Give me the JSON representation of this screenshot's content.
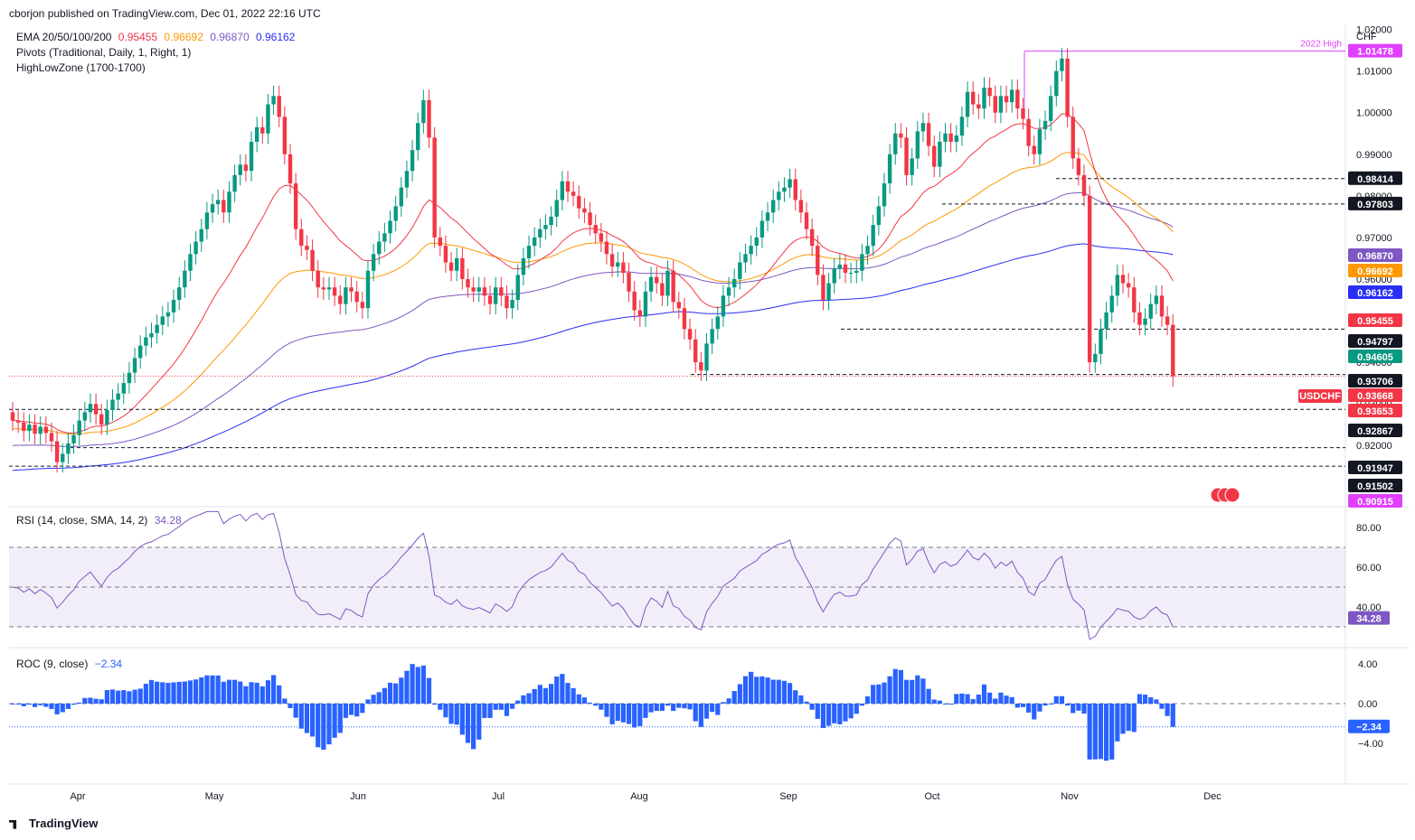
{
  "header": {
    "publisher": "cborjon published on TradingView.com, Dec 01, 2022 22:16 UTC"
  },
  "footer": {
    "brand": "TradingView"
  },
  "colors": {
    "up": "#089981",
    "down": "#f23645",
    "ema20": "#f23645",
    "ema50": "#ff9800",
    "ema100": "#7e57c2",
    "ema200": "#2a2ef5",
    "rsi": "#7e57c2",
    "roc": "#2962ff",
    "high": "#e040fb"
  },
  "legend": {
    "ema": {
      "label": "EMA 20/50/100/200",
      "v20": "0.95455",
      "v50": "0.96692",
      "v100": "0.96870",
      "v200": "0.96162"
    },
    "pivots": "Pivots (Traditional, Daily, 1, Right, 1)",
    "hlz": "HighLowZone (1700-1700)"
  },
  "rsi_legend": {
    "label": "RSI (14, close, SMA, 14, 2)",
    "value": "34.28"
  },
  "roc_legend": {
    "label": "ROC (9, close)",
    "value": "−2.34"
  },
  "chart_data": {
    "type": "candlestick",
    "symbol": "USDCHF",
    "currency": "CHF",
    "x_months": [
      "Apr",
      "May",
      "Jun",
      "Jul",
      "Aug",
      "Sep",
      "Oct",
      "Nov",
      "Dec"
    ],
    "y_ticks": [
      "1.02000",
      "1.01000",
      "1.00000",
      "0.99000",
      "0.98000",
      "0.97000",
      "0.96000",
      "0.95000",
      "0.94000",
      "0.93000",
      "0.92000",
      "0.91000"
    ],
    "ylim": [
      0.9055,
      1.021
    ],
    "closes": [
      0.926,
      0.9255,
      0.9235,
      0.925,
      0.9228,
      0.9245,
      0.923,
      0.921,
      0.916,
      0.918,
      0.9205,
      0.9225,
      0.926,
      0.928,
      0.93,
      0.9275,
      0.925,
      0.9285,
      0.931,
      0.9325,
      0.935,
      0.9375,
      0.941,
      0.944,
      0.946,
      0.947,
      0.949,
      0.951,
      0.952,
      0.955,
      0.958,
      0.962,
      0.966,
      0.969,
      0.972,
      0.976,
      0.978,
      0.979,
      0.976,
      0.981,
      0.985,
      0.9875,
      0.986,
      0.993,
      0.9965,
      0.995,
      1.002,
      1.004,
      0.999,
      0.99,
      0.983,
      0.972,
      0.968,
      0.967,
      0.962,
      0.958,
      0.9575,
      0.958,
      0.956,
      0.954,
      0.958,
      0.957,
      0.9545,
      0.953,
      0.962,
      0.966,
      0.969,
      0.971,
      0.974,
      0.9775,
      0.982,
      0.986,
      0.991,
      0.9975,
      1.003,
      0.994,
      0.97,
      0.968,
      0.964,
      0.962,
      0.965,
      0.96,
      0.958,
      0.957,
      0.958,
      0.956,
      0.954,
      0.958,
      0.956,
      0.953,
      0.955,
      0.961,
      0.965,
      0.968,
      0.97,
      0.972,
      0.973,
      0.975,
      0.979,
      0.9835,
      0.981,
      0.98,
      0.977,
      0.976,
      0.973,
      0.971,
      0.969,
      0.966,
      0.963,
      0.964,
      0.9615,
      0.957,
      0.9525,
      0.951,
      0.957,
      0.9605,
      0.959,
      0.956,
      0.962,
      0.9545,
      0.953,
      0.948,
      0.9455,
      0.94,
      0.938,
      0.9445,
      0.948,
      0.951,
      0.956,
      0.958,
      0.96,
      0.964,
      0.966,
      0.968,
      0.97,
      0.974,
      0.976,
      0.979,
      0.981,
      0.982,
      0.984,
      0.979,
      0.976,
      0.972,
      0.968,
      0.961,
      0.955,
      0.959,
      0.9625,
      0.9635,
      0.9615,
      0.9615,
      0.962,
      0.966,
      0.968,
      0.973,
      0.9775,
      0.983,
      0.99,
      0.995,
      0.994,
      0.985,
      0.989,
      0.9955,
      0.9975,
      0.992,
      0.987,
      0.993,
      0.995,
      0.993,
      0.9945,
      0.999,
      1.005,
      1.002,
      1.001,
      1.006,
      1.004,
      1.0,
      1.004,
      1.0025,
      1.0055,
      1.001,
      0.9985,
      0.992,
      0.99,
      0.996,
      0.998,
      1.004,
      1.01,
      1.013,
      0.999,
      0.989,
      0.985,
      0.98,
      0.94,
      0.942,
      0.948,
      0.952,
      0.956,
      0.961,
      0.959,
      0.958,
      0.952,
      0.949,
      0.9505,
      0.954,
      0.956,
      0.951,
      0.949,
      0.9366
    ],
    "current": {
      "label": "USDCHF",
      "value": "0.93668",
      "bar_countdown": "0.93653"
    },
    "price_labels": [
      {
        "value": "1.01478",
        "note": "2022 High"
      },
      {
        "value": "0.98414"
      },
      {
        "value": "0.97803"
      },
      {
        "value": "0.96870",
        "series": "EMA 100"
      },
      {
        "value": "0.96692",
        "series": "EMA 50"
      },
      {
        "value": "0.96162",
        "series": "EMA 200"
      },
      {
        "value": "0.95455",
        "series": "EMA 20"
      },
      {
        "value": "0.94797"
      },
      {
        "value": "0.94605"
      },
      {
        "value": "0.93706"
      },
      {
        "value": "0.92867"
      },
      {
        "value": "0.91947"
      },
      {
        "value": "0.91502"
      },
      {
        "value": "0.90915"
      }
    ],
    "high_note": "2022 High",
    "rsi": {
      "value": 34.28,
      "ticks": [
        "80.00",
        "60.00",
        "40.00"
      ],
      "band": [
        30,
        70
      ]
    },
    "roc": {
      "value": -2.34,
      "ticks": [
        "4.00",
        "0.00",
        "−4.00"
      ]
    }
  }
}
